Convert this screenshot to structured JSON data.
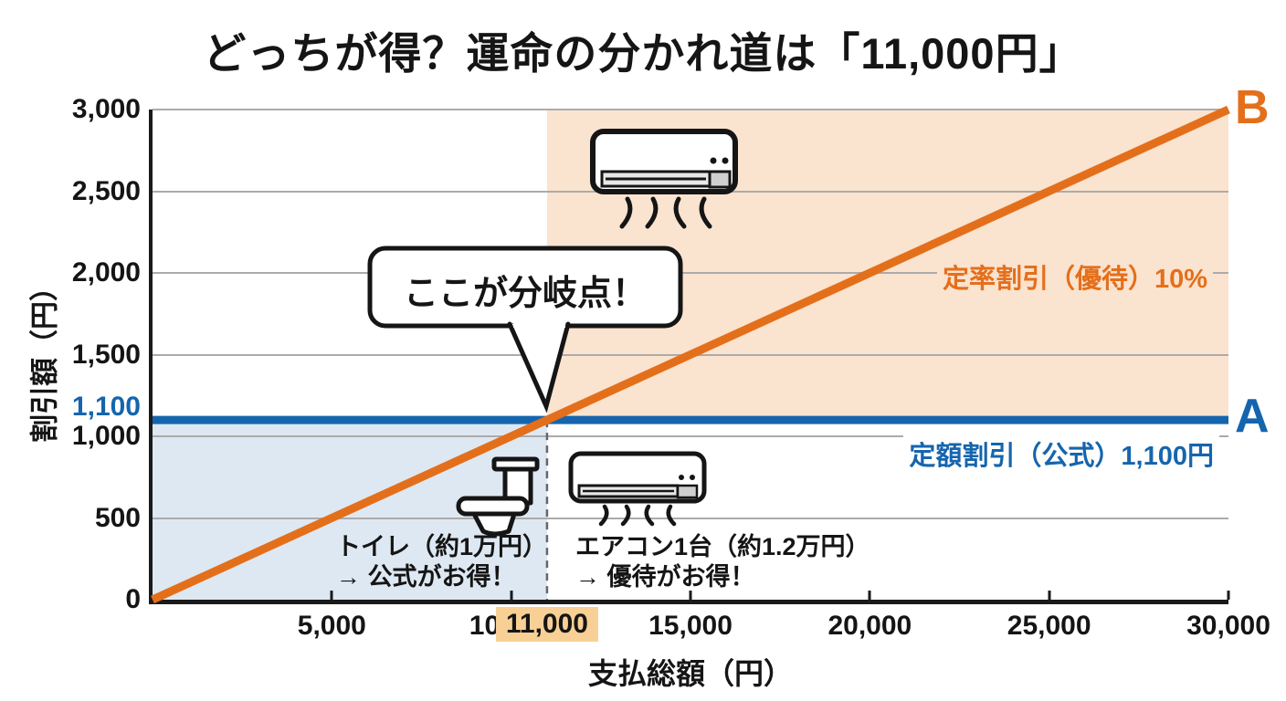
{
  "title": "どっちが得？運命の分かれ道は「11,000円」",
  "axes": {
    "x_label": "支払総額（円）",
    "y_label": "割引額（円）"
  },
  "callout": {
    "text": "ここが分岐点！"
  },
  "annotations": {
    "left": {
      "line1": "トイレ（約1万円）",
      "line2": "→ 公式がお得！"
    },
    "right": {
      "line1": "エアコン1台（約1.2万円）",
      "line2": "→ 優待がお得！"
    }
  },
  "series_labels": {
    "rate": "定率割引（優待）10%",
    "fixed": "定額割引（公式）1,100円",
    "rate_letter": "B",
    "fixed_letter": "A"
  },
  "icons": {
    "top": "air-conditioner-icon",
    "bottom_left": "toilet-icon",
    "bottom_right": "air-conditioner-small-icon"
  },
  "colors": {
    "orange": "#E46F1B",
    "blue": "#1565AE",
    "peach_fill": "#FAE3CF",
    "blue_fill": "#DEE8F2",
    "tick_highlight": "#F8D095",
    "gridline": "#ABABAB",
    "dash": "#666666",
    "axis": "#1A1A1A"
  },
  "chart_data": {
    "type": "line",
    "title": "どっちが得？運命の分かれ道は「11,000円」",
    "xlabel": "支払総額（円）",
    "ylabel": "割引額（円）",
    "xlim": [
      0,
      30000
    ],
    "ylim": [
      0,
      3000
    ],
    "grid": true,
    "x_ticks": [
      {
        "value": 5000,
        "label": "5,000"
      },
      {
        "value": 10000,
        "label": "10,000"
      },
      {
        "value": 11000,
        "label": "11,000",
        "highlight": true
      },
      {
        "value": 15000,
        "label": "15,000"
      },
      {
        "value": 20000,
        "label": "20,000"
      },
      {
        "value": 25000,
        "label": "25,000"
      },
      {
        "value": 30000,
        "label": "30,000"
      }
    ],
    "x_axis_tick_marks": [
      5000,
      10000,
      15000,
      20000,
      25000,
      30000
    ],
    "y_ticks": [
      {
        "value": 0,
        "label": "0"
      },
      {
        "value": 500,
        "label": "500"
      },
      {
        "value": 1000,
        "label": "1,000"
      },
      {
        "value": 1100,
        "label": "1,100",
        "highlight": true,
        "dy": -14
      },
      {
        "value": 1500,
        "label": "1,500"
      },
      {
        "value": 2000,
        "label": "2,000"
      },
      {
        "value": 2500,
        "label": "2,500"
      },
      {
        "value": 3000,
        "label": "3,000"
      }
    ],
    "grid_y_values": [
      500,
      1000,
      1500,
      2000,
      2500,
      3000
    ],
    "series": [
      {
        "name": "定額割引（公式）1,100円",
        "label_letter": "A",
        "color": "#1565AE",
        "kind": "fixed-amount",
        "value": 1100,
        "points": [
          [
            0,
            1100
          ],
          [
            30000,
            1100
          ]
        ]
      },
      {
        "name": "定率割引（優待）10%",
        "label_letter": "B",
        "color": "#E46F1B",
        "kind": "fixed-rate",
        "rate": 0.1,
        "points": [
          [
            0,
            0
          ],
          [
            30000,
            3000
          ]
        ]
      }
    ],
    "breakeven": {
      "x": 11000,
      "y": 1100
    },
    "regions": [
      {
        "name": "fixed-discount-better-region",
        "x": [
          0,
          11000
        ],
        "y": [
          0,
          1100
        ],
        "color": "#DEE8F2"
      },
      {
        "name": "rate-discount-better-region",
        "x": [
          11000,
          30000
        ],
        "y": [
          1100,
          3000
        ],
        "color": "#FAE3CF"
      }
    ],
    "legend_position": "inline-right"
  }
}
